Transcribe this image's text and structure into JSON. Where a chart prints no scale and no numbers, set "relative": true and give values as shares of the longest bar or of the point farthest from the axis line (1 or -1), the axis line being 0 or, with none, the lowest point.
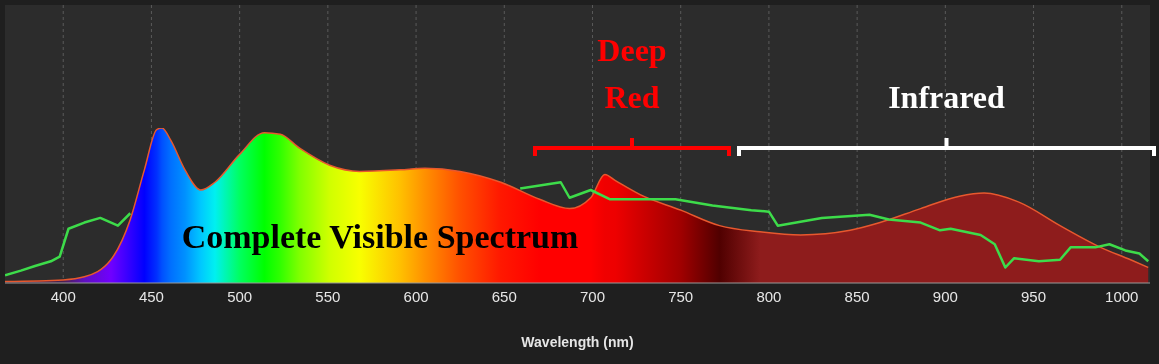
{
  "chart_data": {
    "type": "area",
    "xlabel": "Wavelength (nm)",
    "relative": true,
    "xlim": [
      367,
      1016
    ],
    "xticks": [
      400,
      450,
      500,
      550,
      600,
      650,
      700,
      750,
      800,
      850,
      900,
      950,
      1000
    ],
    "grid": "x",
    "annotations": [
      "Complete Visible Spectrum",
      "Deep Red",
      "Infrared"
    ],
    "series": [
      {
        "color": "#e8582e",
        "x": [
          367,
          400,
          412,
          427,
          438,
          446,
          453,
          456,
          461,
          469,
          478,
          486,
          500,
          514,
          523,
          534,
          551,
          568,
          591,
          605,
          625,
          648,
          670,
          687,
          699,
          707,
          713,
          727,
          750,
          772,
          795,
          818,
          846,
          863,
          886,
          908,
          922,
          942,
          965,
          988,
          1005,
          1015
        ],
        "values": [
          0.01,
          0.02,
          0.04,
          0.15,
          0.41,
          0.73,
          0.99,
          1,
          0.92,
          0.73,
          0.6,
          0.65,
          0.83,
          0.97,
          0.96,
          0.87,
          0.76,
          0.72,
          0.73,
          0.74,
          0.72,
          0.65,
          0.54,
          0.48,
          0.55,
          0.7,
          0.66,
          0.57,
          0.47,
          0.37,
          0.33,
          0.31,
          0.34,
          0.39,
          0.48,
          0.56,
          0.58,
          0.52,
          0.37,
          0.23,
          0.15,
          0.1
        ],
        "colors": [
          "#3a2030",
          "#4a2050",
          "#6010c0",
          "#7000ff",
          "#3000ff",
          "#0000ff",
          "#0030ff",
          "#0050ff",
          "#0070ff",
          "#0090ff",
          "#00c8ff",
          "#00f0f0",
          "#00ff60",
          "#00ff00",
          "#30ff00",
          "#80ff00",
          "#d0ff00",
          "#f8ff00",
          "#ffc000",
          "#ff9000",
          "#ff5000",
          "#ff1800",
          "#ff0000",
          "#ff0000",
          "#ff0000",
          "#f00000",
          "#ee0000",
          "#d00000",
          "#a00000",
          "#500000",
          "#8e1c1c",
          "#8e1c1c",
          "#8e1c1c",
          "#8e1c1c",
          "#8e1c1c",
          "#8e1c1c",
          "#8e1c1c",
          "#8e1c1c",
          "#8e1c1c",
          "#8e1c1c",
          "#8e1c1c",
          "#8e1c1c"
        ]
      },
      {
        "type": "line",
        "color": "#3ddc4a",
        "x": [
          367,
          376,
          384,
          393,
          398,
          403,
          412,
          421,
          431,
          438,
          550,
          659,
          682,
          687,
          699,
          710,
          747,
          768,
          790,
          800,
          805,
          830,
          857,
          868,
          886,
          897,
          903,
          920,
          928,
          934,
          939,
          953,
          965,
          971,
          985,
          993,
          1002,
          1010,
          1015
        ],
        "values": [
          0.05,
          0.08,
          0.11,
          0.14,
          0.17,
          0.35,
          0.39,
          0.42,
          0.37,
          0.45,
          null,
          0.61,
          0.65,
          0.55,
          0.6,
          0.54,
          0.54,
          0.5,
          0.47,
          0.46,
          0.37,
          0.42,
          0.44,
          0.41,
          0.39,
          0.34,
          0.35,
          0.31,
          0.25,
          0.1,
          0.16,
          0.14,
          0.15,
          0.23,
          0.23,
          0.25,
          0.21,
          0.19,
          0.14
        ]
      }
    ]
  }
}
